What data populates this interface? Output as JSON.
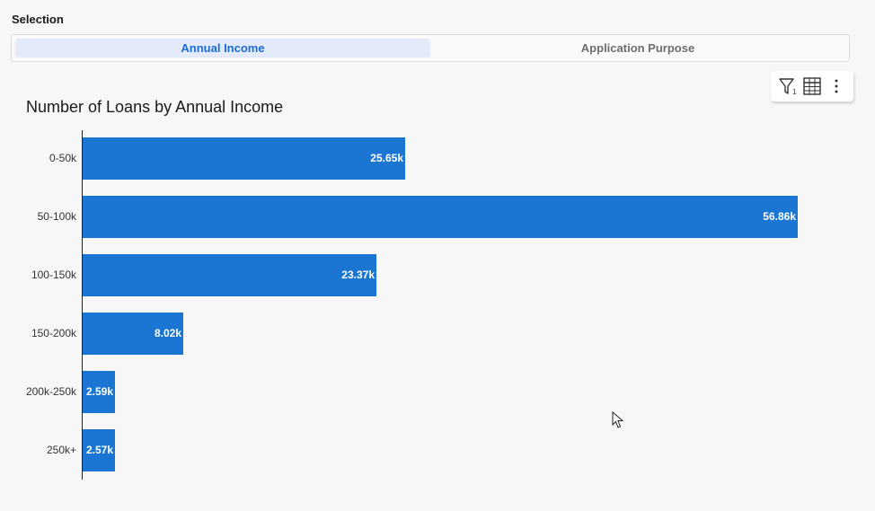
{
  "selection": {
    "label": "Selection",
    "options": [
      "Annual Income",
      "Application Purpose"
    ],
    "active": "Annual Income"
  },
  "toolbar": {
    "icons": [
      "filter-icon",
      "table-icon",
      "more-vertical-icon"
    ],
    "filter_count": "1"
  },
  "chart_data": {
    "type": "bar",
    "orientation": "horizontal",
    "title": "Number of Loans by Annual Income",
    "categories": [
      "0-50k",
      "50-100k",
      "100-150k",
      "150-200k",
      "200k-250k",
      "250k+"
    ],
    "values": [
      25650,
      56860,
      23370,
      8020,
      2590,
      2570
    ],
    "value_labels": [
      "25.65k",
      "56.86k",
      "23.37k",
      "8.02k",
      "2.59k",
      "2.57k"
    ],
    "color": "#1a76d2",
    "xlim": [
      0,
      56860
    ]
  }
}
